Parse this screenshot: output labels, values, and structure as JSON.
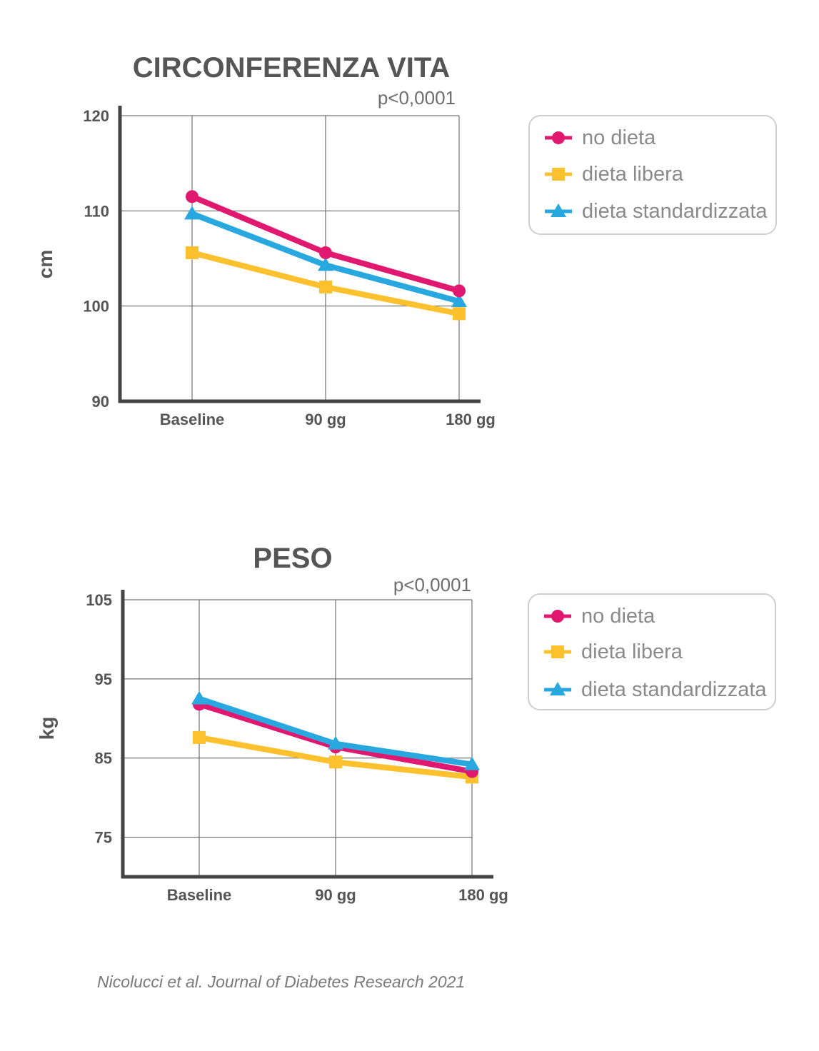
{
  "colors": {
    "no_dieta": "#e0186f",
    "dieta_libera": "#fdc12e",
    "dieta_standardizzata": "#29a8e0"
  },
  "legend": [
    "no dieta",
    "dieta libera",
    "dieta standardizzata"
  ],
  "source": "Nicolucci et al. Journal of Diabetes Research 2021",
  "chart_data": [
    {
      "type": "line",
      "title": "CIRCONFERENZA VITA",
      "annotation": "p<0,0001",
      "ylabel": "cm",
      "xlabel": "",
      "categories": [
        "Baseline",
        "90 gg",
        "180 gg"
      ],
      "ylim": [
        90,
        120
      ],
      "yticks": [
        90,
        100,
        110,
        120
      ],
      "grid": true,
      "legend_position": "right",
      "series": [
        {
          "name": "no dieta",
          "marker": "circle",
          "values": [
            111.5,
            105.6,
            101.6
          ]
        },
        {
          "name": "dieta libera",
          "marker": "square",
          "values": [
            105.6,
            102.0,
            99.2
          ]
        },
        {
          "name": "dieta standardizzata",
          "marker": "triangle",
          "values": [
            109.7,
            104.3,
            100.5
          ]
        }
      ]
    },
    {
      "type": "line",
      "title": "PESO",
      "annotation": "p<0,0001",
      "ylabel": "kg",
      "xlabel": "",
      "categories": [
        "Baseline",
        "90 gg",
        "180 gg"
      ],
      "ylim": [
        70,
        105
      ],
      "yticks": [
        75,
        85,
        95,
        105
      ],
      "grid": true,
      "legend_position": "right",
      "series": [
        {
          "name": "no dieta",
          "marker": "circle",
          "values": [
            91.8,
            86.4,
            83.3
          ]
        },
        {
          "name": "dieta libera",
          "marker": "square",
          "values": [
            87.6,
            84.5,
            82.6
          ]
        },
        {
          "name": "dieta standardizzata",
          "marker": "triangle",
          "values": [
            92.5,
            86.8,
            84.2
          ]
        }
      ]
    }
  ]
}
